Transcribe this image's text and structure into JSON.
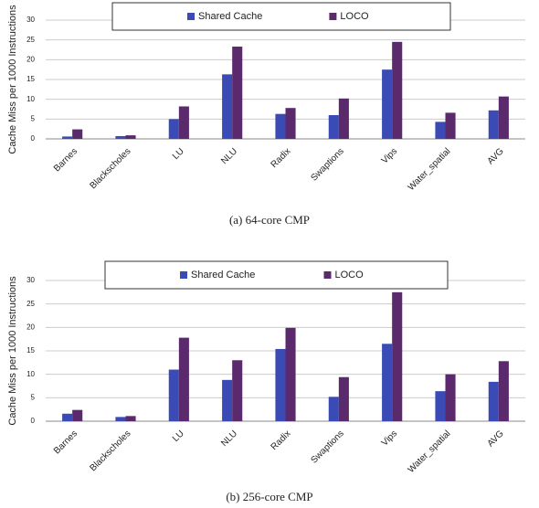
{
  "chart_data": [
    {
      "type": "bar",
      "caption": "(a) 64-core CMP",
      "y_label": "Cache Miss per 1000 Instructions",
      "categories": [
        "Barnes",
        "Blackscholes",
        "LU",
        "NLU",
        "Radix",
        "Swaptions",
        "Vips",
        "Water_spatial",
        "AVG"
      ],
      "series": [
        {
          "name": "Shared Cache",
          "color": "#3a4bb5",
          "values": [
            0.6,
            0.7,
            5.0,
            16.3,
            6.3,
            6.0,
            17.5,
            4.3,
            7.2
          ]
        },
        {
          "name": "LOCO",
          "color": "#5a2a6c",
          "values": [
            2.4,
            0.9,
            8.2,
            23.3,
            7.8,
            10.2,
            24.5,
            6.6,
            10.7
          ]
        }
      ],
      "ylim": [
        0,
        30
      ],
      "yticks": [
        0,
        5,
        10,
        15,
        20,
        25,
        30
      ],
      "grid": true
    },
    {
      "type": "bar",
      "caption": "(b) 256-core CMP",
      "y_label": "Cache Miss per 1000 Instructions",
      "categories": [
        "Barnes",
        "Blackscholes",
        "LU",
        "NLU",
        "Radix",
        "Swaptions",
        "Vips",
        "Water_spatial",
        "AVG"
      ],
      "series": [
        {
          "name": "Shared Cache",
          "color": "#3a4bb5",
          "values": [
            1.6,
            0.9,
            11.0,
            8.8,
            15.4,
            5.2,
            16.5,
            6.4,
            8.4
          ]
        },
        {
          "name": "LOCO",
          "color": "#5a2a6c",
          "values": [
            2.4,
            1.1,
            17.8,
            13.0,
            19.9,
            9.4,
            27.5,
            10.0,
            12.8
          ]
        }
      ],
      "ylim": [
        0,
        30
      ],
      "yticks": [
        0,
        5,
        10,
        15,
        20,
        25,
        30
      ],
      "grid": true
    }
  ]
}
